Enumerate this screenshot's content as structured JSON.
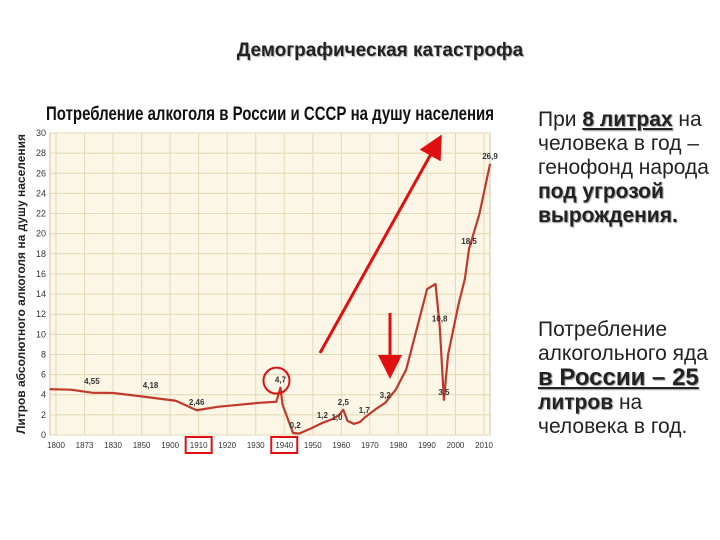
{
  "page": {
    "title": "Демографическая катастрофа"
  },
  "chart_data": {
    "type": "line",
    "title": "Потребление алкоголя в России и СССР на душу населения",
    "ylabel": "Литров абсолютного алкоголя на душу населения",
    "xlabel": "",
    "ylim": [
      0,
      30
    ],
    "yticks": [
      0,
      2,
      4,
      6,
      8,
      10,
      12,
      14,
      16,
      18,
      20,
      22,
      24,
      26,
      28,
      30
    ],
    "xticks": [
      "1800",
      "1873",
      "1830",
      "1850",
      "1900",
      "1910",
      "1920",
      "1930",
      "1940",
      "1950",
      "1960",
      "1970",
      "1980",
      "1990",
      "2000",
      "2010"
    ],
    "highlighted_xticks": [
      "1910",
      "1940"
    ],
    "grid": true,
    "line_color": "#c0392b",
    "series": [
      {
        "x": [
          1800,
          1810,
          1820,
          1830,
          1845,
          1860,
          1870,
          1880,
          1890,
          1900,
          1908,
          1910,
          1911,
          1916,
          1919,
          1925,
          1930,
          1935,
          1938,
          1940,
          1942,
          1945,
          1948,
          1950,
          1955,
          1960,
          1965,
          1970,
          1975,
          1980,
          1984,
          1986,
          1988,
          1990,
          1995,
          1998,
          2000,
          2005,
          2010
        ],
        "values": [
          4.55,
          4.5,
          4.2,
          4.18,
          3.8,
          3.4,
          2.46,
          2.8,
          3.0,
          3.2,
          3.3,
          4.7,
          3.0,
          0.2,
          0.15,
          0.7,
          1.2,
          1.6,
          2.0,
          2.5,
          1.4,
          1.1,
          1.3,
          1.7,
          2.5,
          3.2,
          4.5,
          6.5,
          10.5,
          14.5,
          15.0,
          10.8,
          3.5,
          8.0,
          13.0,
          15.5,
          18.5,
          22.0,
          26.9
        ]
      }
    ],
    "data_labels": [
      {
        "x": 1820,
        "y": 4.55,
        "text": "4,55"
      },
      {
        "x": 1848,
        "y": 4.18,
        "text": "4,18"
      },
      {
        "x": 1870,
        "y": 2.46,
        "text": "2,46"
      },
      {
        "x": 1910,
        "y": 4.7,
        "text": "4,7"
      },
      {
        "x": 1917,
        "y": 0.2,
        "text": "0,2"
      },
      {
        "x": 1930,
        "y": 1.2,
        "text": "1,2"
      },
      {
        "x": 1940,
        "y": 2.5,
        "text": "2,5"
      },
      {
        "x": 1937,
        "y": 1.0,
        "text": "1,0"
      },
      {
        "x": 1950,
        "y": 1.7,
        "text": "1,7"
      },
      {
        "x": 1960,
        "y": 3.2,
        "text": "3,2"
      },
      {
        "x": 1986,
        "y": 10.8,
        "text": "10,8"
      },
      {
        "x": 1988,
        "y": 3.5,
        "text": "3,5"
      },
      {
        "x": 2000,
        "y": 18.5,
        "text": "18,5"
      },
      {
        "x": 2010,
        "y": 26.9,
        "text": "26,9"
      }
    ]
  },
  "side_text": {
    "p1_a": "При ",
    "p1_b": "8 литрах",
    "p1_c": " на человека в год – генофонд народа ",
    "p1_d": "под угрозой вырождения.",
    "p2_a": "Потребление алкогольного яда ",
    "p2_b": "в России – 25",
    "p2_c": "литров",
    "p2_d": " на человека в год."
  },
  "annotations": {
    "arrow_color": "#e01010",
    "circle_color": "#e01010"
  }
}
